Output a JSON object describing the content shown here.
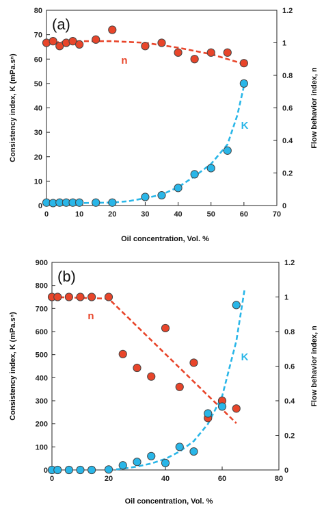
{
  "chart_data": [
    {
      "type": "scatter",
      "panel_label": "(a)",
      "xlabel": "Oil concentration, Vol. %",
      "ylabel": "Consistency index, K (mPa.sⁿ)",
      "y2label": "Flow behavior index, n",
      "xlim": [
        0,
        70
      ],
      "ylim": [
        0,
        80
      ],
      "y2lim": [
        0,
        1.2
      ],
      "xticks": [
        "0",
        "10",
        "20",
        "30",
        "40",
        "50",
        "60",
        "70"
      ],
      "yticks": [
        "0",
        "10",
        "20",
        "30",
        "40",
        "50",
        "60",
        "70",
        "80"
      ],
      "y2ticks": [
        "0",
        "0.2",
        "0.4",
        "0.6",
        "0.8",
        "1",
        "1.2"
      ],
      "grid": false,
      "series": [
        {
          "name": "n",
          "axis": "right",
          "color": "#e8452a",
          "x": [
            0,
            2,
            4,
            6,
            8,
            10,
            15,
            20,
            30,
            35,
            40,
            45,
            50,
            55,
            60
          ],
          "y": [
            1.0,
            1.01,
            0.98,
            1.0,
            1.01,
            0.99,
            1.02,
            1.08,
            0.98,
            1.0,
            0.94,
            0.9,
            0.94,
            0.94,
            0.875
          ],
          "fit_x": [
            0,
            10,
            20,
            30,
            40,
            50,
            55,
            60
          ],
          "fit_y": [
            1.0,
            1.01,
            1.01,
            1.0,
            0.97,
            0.93,
            0.9,
            0.87
          ]
        },
        {
          "name": "K",
          "axis": "left",
          "color": "#29b6e8",
          "x": [
            0,
            2,
            4,
            6,
            8,
            10,
            15,
            20,
            30,
            35,
            40,
            45,
            50,
            55,
            60
          ],
          "y": [
            1.2,
            1.0,
            1.2,
            1.2,
            1.2,
            1.2,
            1.2,
            1.2,
            3.5,
            4.2,
            7.2,
            12.8,
            15.3,
            22.5,
            50
          ],
          "fit_x": [
            0,
            10,
            20,
            25,
            30,
            35,
            40,
            45,
            50,
            55,
            58,
            60
          ],
          "fit_y": [
            1.0,
            1.0,
            1.2,
            1.8,
            3.0,
            4.5,
            7.5,
            12.0,
            17.0,
            25.0,
            37.0,
            49.0
          ]
        }
      ]
    },
    {
      "type": "scatter",
      "panel_label": "(b)",
      "xlabel": "Oil concentration, Vol. %",
      "ylabel": "Consistency index, K (mPa.sⁿ)",
      "y2label": "Flow  behavior index, n",
      "xlim": [
        0,
        80
      ],
      "ylim": [
        0,
        900
      ],
      "y2lim": [
        0,
        1.2
      ],
      "xticks": [
        "0",
        "20",
        "40",
        "60",
        "80"
      ],
      "yticks": [
        "0",
        "100",
        "200",
        "300",
        "400",
        "500",
        "600",
        "700",
        "800",
        "900"
      ],
      "y2ticks": [
        "0",
        "0.2",
        "0.4",
        "0.6",
        "0.8",
        "1",
        "1.2"
      ],
      "grid": false,
      "series": [
        {
          "name": "n",
          "axis": "right",
          "color": "#e8452a",
          "x": [
            0,
            2,
            6,
            10,
            14,
            20,
            25,
            30,
            35,
            40,
            45,
            50,
            55,
            60,
            65
          ],
          "y": [
            1.0,
            1.0,
            1.0,
            1.0,
            1.0,
            1.0,
            0.67,
            0.59,
            0.54,
            0.82,
            0.48,
            0.62,
            0.3,
            0.4,
            0.355
          ],
          "fit_x": [
            0,
            20,
            65
          ],
          "fit_y": [
            1.0,
            0.99,
            0.27
          ]
        },
        {
          "name": "K",
          "axis": "left",
          "color": "#29b6e8",
          "x": [
            0,
            2,
            6,
            10,
            14,
            20,
            25,
            30,
            35,
            40,
            45,
            50,
            55,
            60,
            65
          ],
          "y": [
            0,
            0,
            0,
            0,
            0,
            2,
            20,
            35,
            60,
            30,
            100,
            80,
            245,
            275,
            715
          ],
          "fit_x": [
            20,
            25,
            30,
            35,
            40,
            45,
            50,
            55,
            60,
            65,
            68
          ],
          "fit_y": [
            0,
            5,
            15,
            28,
            48,
            80,
            125,
            200,
            320,
            560,
            790
          ]
        }
      ]
    }
  ]
}
